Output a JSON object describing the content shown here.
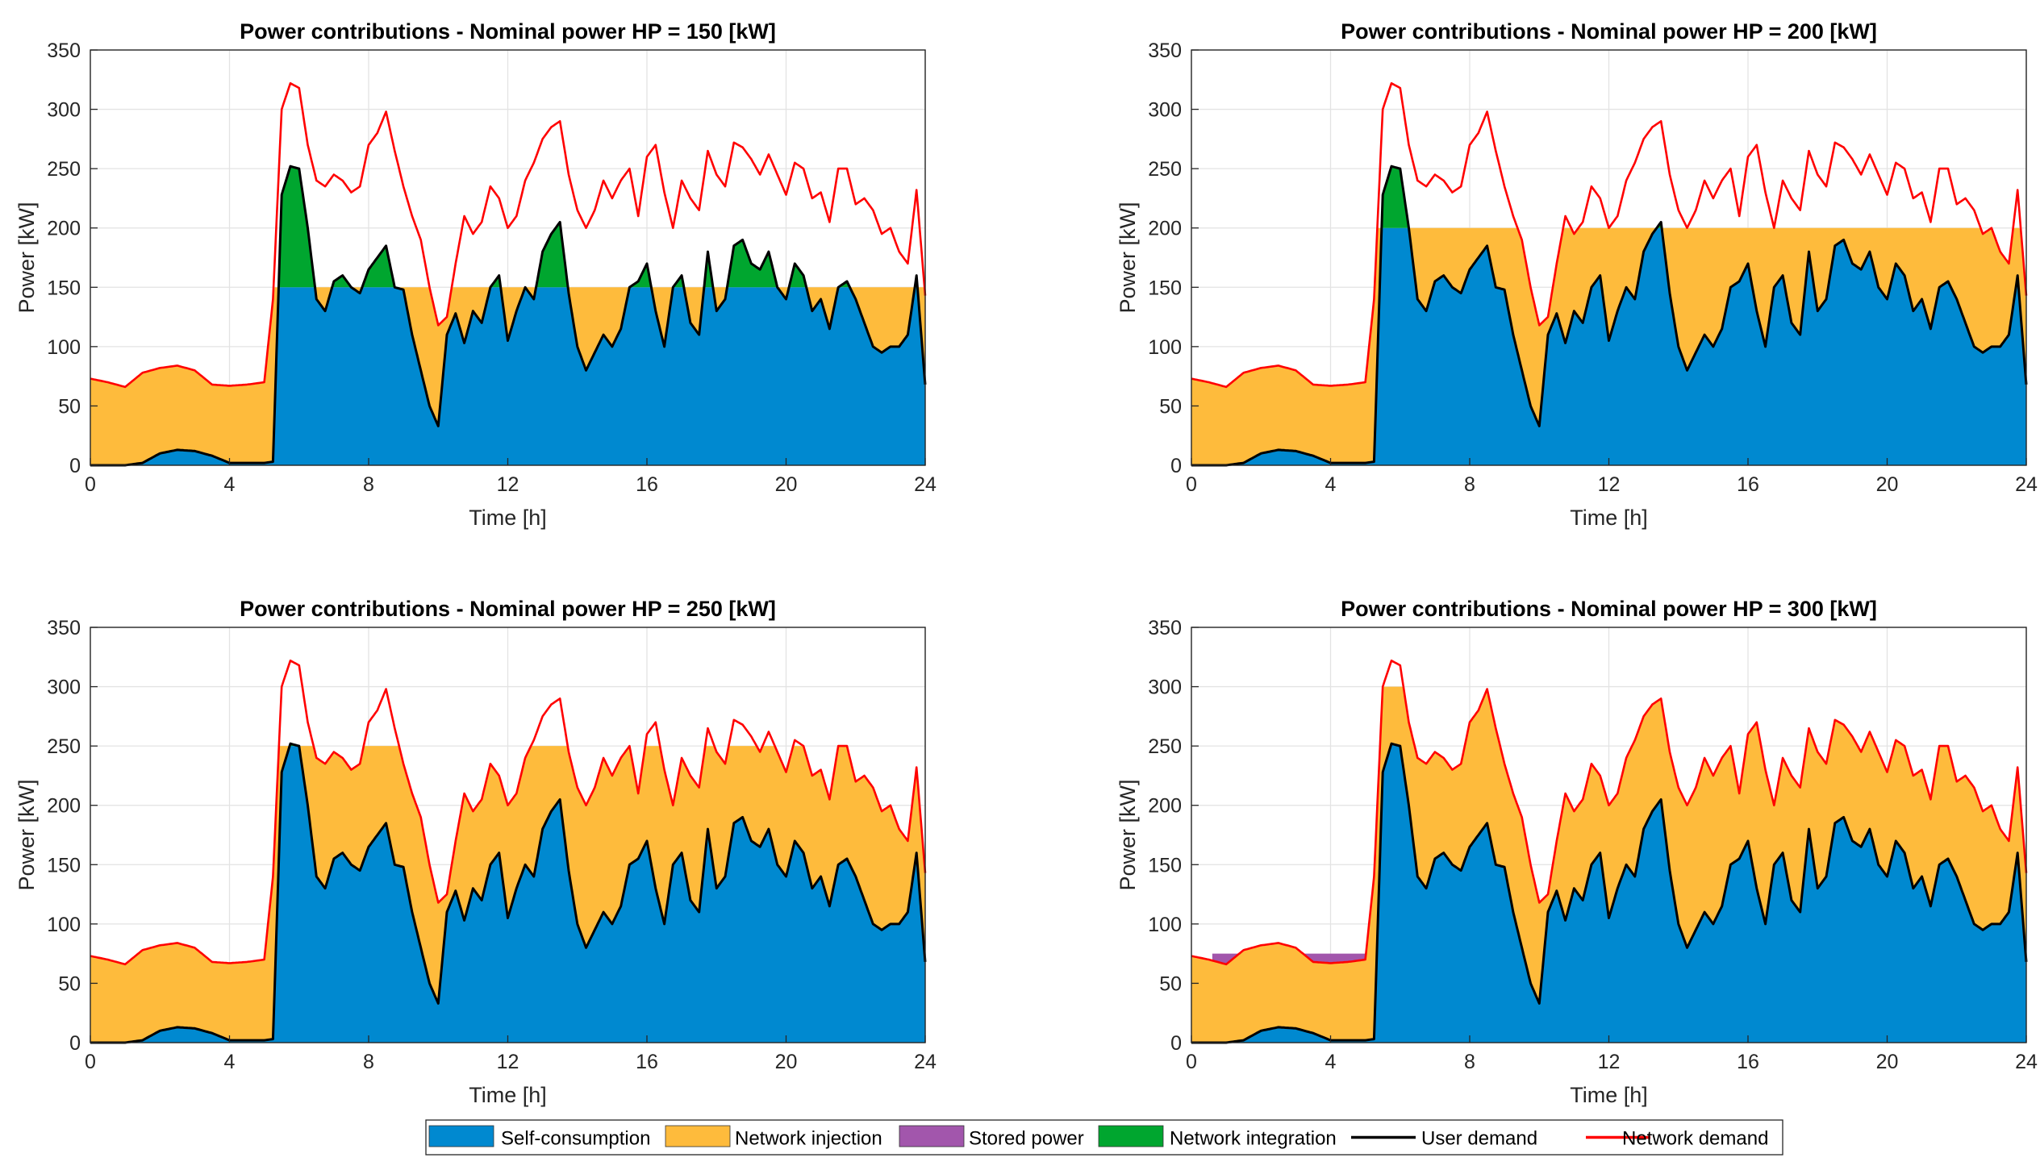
{
  "colors": {
    "self_consumption": "#0089d0",
    "network_injection": "#febb3c",
    "stored_power": "#a256ac",
    "network_integration": "#00a62f",
    "user_demand": "#000000",
    "network_demand": "#ff0000"
  },
  "legend": {
    "placement": "bottom-center",
    "entries": [
      {
        "label": "Self-consumption",
        "kind": "patch",
        "color_key": "self_consumption"
      },
      {
        "label": "Network injection",
        "kind": "patch",
        "color_key": "network_injection"
      },
      {
        "label": "Stored power",
        "kind": "patch",
        "color_key": "stored_power"
      },
      {
        "label": "Network integration",
        "kind": "patch",
        "color_key": "network_integration"
      },
      {
        "label": "User demand",
        "kind": "line",
        "color_key": "user_demand"
      },
      {
        "label": "Network demand",
        "kind": "line",
        "color_key": "network_demand"
      }
    ]
  },
  "chart_data": [
    {
      "type": "area",
      "title": "Power contributions - Nominal power HP = 150 [kW]",
      "xlabel": "Time [h]",
      "ylabel": "Power [kW]",
      "xlim": [
        0,
        24
      ],
      "ylim": [
        0,
        350
      ],
      "xticks": [
        0,
        4,
        8,
        12,
        16,
        20,
        24
      ],
      "yticks": [
        0,
        50,
        100,
        150,
        200,
        250,
        300,
        350
      ],
      "grid": true,
      "hp_nominal": 150,
      "storage_active": false
    },
    {
      "type": "area",
      "title": "Power contributions - Nominal power HP = 200 [kW]",
      "xlabel": "Time [h]",
      "ylabel": "Power [kW]",
      "xlim": [
        0,
        24
      ],
      "ylim": [
        0,
        350
      ],
      "xticks": [
        0,
        4,
        8,
        12,
        16,
        20,
        24
      ],
      "yticks": [
        0,
        50,
        100,
        150,
        200,
        250,
        300,
        350
      ],
      "grid": true,
      "hp_nominal": 200,
      "storage_active": false
    },
    {
      "type": "area",
      "title": "Power contributions - Nominal power HP = 250 [kW]",
      "xlabel": "Time [h]",
      "ylabel": "Power [kW]",
      "xlim": [
        0,
        24
      ],
      "ylim": [
        0,
        350
      ],
      "xticks": [
        0,
        4,
        8,
        12,
        16,
        20,
        24
      ],
      "yticks": [
        0,
        50,
        100,
        150,
        200,
        250,
        300,
        350
      ],
      "grid": true,
      "hp_nominal": 250,
      "storage_active": false
    },
    {
      "type": "area",
      "title": "Power contributions - Nominal power HP = 300 [kW]",
      "xlabel": "Time [h]",
      "ylabel": "Power [kW]",
      "xlim": [
        0,
        24
      ],
      "ylim": [
        0,
        350
      ],
      "xticks": [
        0,
        4,
        8,
        12,
        16,
        20,
        24
      ],
      "yticks": [
        0,
        50,
        100,
        150,
        200,
        250,
        300,
        350
      ],
      "grid": true,
      "hp_nominal": 300,
      "storage_active": true,
      "storage_level": 75
    }
  ],
  "series": {
    "t": [
      0,
      0.5,
      1,
      1.5,
      2,
      2.5,
      3,
      3.5,
      4,
      4.5,
      5,
      5.25,
      5.5,
      5.75,
      6,
      6.25,
      6.5,
      6.75,
      7,
      7.25,
      7.5,
      7.75,
      8,
      8.25,
      8.5,
      8.75,
      9,
      9.25,
      9.5,
      9.75,
      10,
      10.25,
      10.5,
      10.75,
      11,
      11.25,
      11.5,
      11.75,
      12,
      12.25,
      12.5,
      12.75,
      13,
      13.25,
      13.5,
      13.75,
      14,
      14.25,
      14.5,
      14.75,
      15,
      15.25,
      15.5,
      15.75,
      16,
      16.25,
      16.5,
      16.75,
      17,
      17.25,
      17.5,
      17.75,
      18,
      18.25,
      18.5,
      18.75,
      19,
      19.25,
      19.5,
      19.75,
      20,
      20.25,
      20.5,
      20.75,
      21,
      21.25,
      21.5,
      21.75,
      22,
      22.25,
      22.5,
      22.75,
      23,
      23.25,
      23.5,
      23.75,
      24
    ],
    "user_demand": [
      0,
      0,
      0,
      2,
      10,
      13,
      12,
      8,
      2,
      2,
      2,
      3,
      228,
      252,
      250,
      200,
      140,
      130,
      155,
      160,
      150,
      145,
      165,
      175,
      185,
      150,
      148,
      110,
      80,
      50,
      33,
      110,
      128,
      103,
      130,
      120,
      150,
      160,
      105,
      130,
      150,
      140,
      180,
      195,
      205,
      145,
      100,
      80,
      95,
      110,
      100,
      115,
      150,
      155,
      170,
      130,
      100,
      150,
      160,
      120,
      110,
      180,
      130,
      140,
      185,
      190,
      170,
      165,
      180,
      150,
      140,
      170,
      160,
      130,
      140,
      115,
      150,
      155,
      140,
      120,
      100,
      95,
      100,
      100,
      110,
      160,
      68
    ],
    "network_demand": [
      73,
      70,
      66,
      78,
      82,
      84,
      80,
      68,
      67,
      68,
      70,
      140,
      300,
      322,
      318,
      270,
      240,
      235,
      245,
      240,
      230,
      235,
      270,
      280,
      298,
      265,
      235,
      210,
      190,
      150,
      118,
      125,
      170,
      210,
      195,
      205,
      235,
      225,
      200,
      210,
      240,
      255,
      275,
      285,
      290,
      245,
      215,
      200,
      215,
      240,
      225,
      240,
      250,
      210,
      260,
      270,
      230,
      200,
      240,
      225,
      215,
      265,
      245,
      235,
      272,
      268,
      258,
      245,
      262,
      245,
      228,
      255,
      250,
      225,
      230,
      205,
      250,
      250,
      220,
      225,
      215,
      195,
      200,
      180,
      170,
      232,
      143
    ]
  }
}
